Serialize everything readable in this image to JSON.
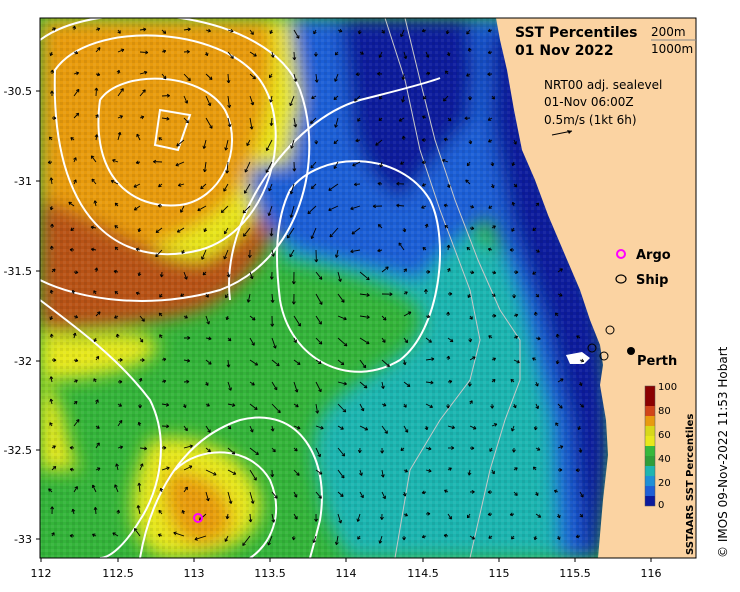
{
  "title": {
    "line1": "SST Percentiles",
    "line2": "01 Nov 2022"
  },
  "depth_legend": {
    "contour1": "200m",
    "contour2": "1000m"
  },
  "current_legend": {
    "line1": "NRT00 adj. sealevel",
    "line2": "01-Nov 06:00Z",
    "line3": "0.5m/s (1kt 6h)"
  },
  "markers": {
    "argo": "Argo",
    "ship": "Ship",
    "city": "Perth"
  },
  "axes": {
    "x_ticks": [
      "112",
      "112.5",
      "113",
      "113.5",
      "114",
      "114.5",
      "115",
      "115.5",
      "116"
    ],
    "y_ticks": [
      "-30.5",
      "-31",
      "-31.5",
      "-32",
      "-32.5",
      "-33"
    ],
    "xlim": [
      112,
      116.3
    ],
    "ylim": [
      -33.1,
      -30.0
    ]
  },
  "colorbar": {
    "label": "SSTAARS SST Percentiles",
    "ticks": [
      "100",
      "80",
      "60",
      "40",
      "20",
      "0"
    ],
    "range": [
      0,
      100
    ]
  },
  "credit": "© IMOS 09-Nov-2022 11:53 Hobart",
  "colors": {
    "land": "#fbd3a2",
    "deep_blue": "#0b1a9c",
    "blue": "#1f5fd6",
    "teal": "#1fb5b0",
    "green": "#36b83c",
    "yellow": "#e8e81a",
    "orange": "#e89b10",
    "brown": "#b85218",
    "argo": "#ff00ff"
  }
}
